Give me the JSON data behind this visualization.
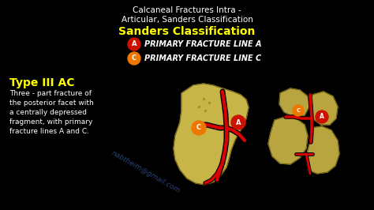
{
  "background_color": "#000000",
  "title1": "Calcaneal Fractures Intra -",
  "title2": "Articular, Sanders Classification",
  "subtitle": "Sanders Classification",
  "legend_A_label": "Primary Fracture Line A",
  "legend_C_label": "Primary Fracture Line C",
  "legend_A_color": "#cc1100",
  "legend_C_color": "#ee7700",
  "legend_A_letter": "A",
  "legend_C_letter": "C",
  "type_label": "Type III AC",
  "type_label_color": "#ffff00",
  "description": [
    "Three - part fracture of",
    "the posterior facet with",
    "a centrally depressed",
    "fragment, with primary",
    "fracture lines A and C."
  ],
  "description_color": "#ffffff",
  "subtitle_color": "#ffff00",
  "title_color": "#ffffff",
  "watermark": "nabtheim@gmail.com",
  "watermark_color": "#4466bb",
  "bone_color_left": "#c8b548",
  "bone_color_right": "#b8a540",
  "bone_outline": "#6a5a10"
}
